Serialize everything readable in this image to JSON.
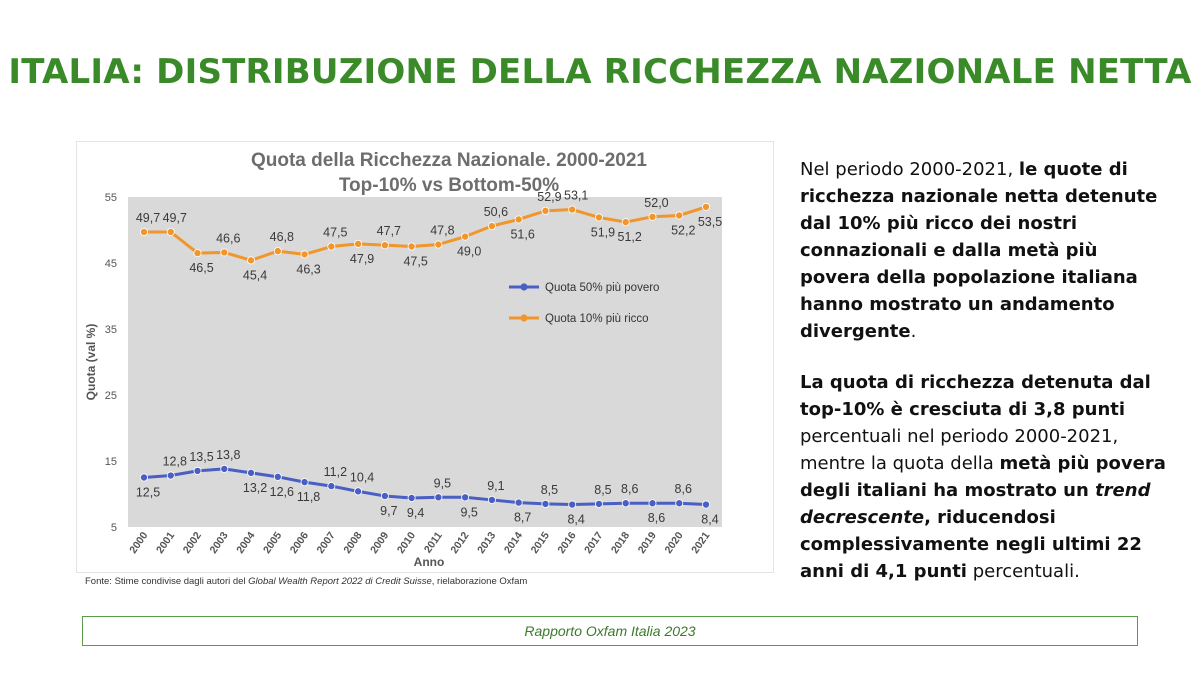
{
  "slide": {
    "title": "ITALIA: DISTRIBUZIONE DELLA RICCHEZZA NAZIONALE NETTA",
    "source_prefix": "Fonte: Stime condivise dagli autori del ",
    "source_italic": "Global Wealth Report 2022 di Credit Suisse",
    "source_suffix": ", rielaborazione  Oxfam",
    "footer": "Rapporto Oxfam Italia 2023"
  },
  "text": {
    "p1_a": "Nel periodo 2000-2021, ",
    "p1_b": "le quote di ricchezza nazionale netta detenute dal 10% più ricco dei nostri connazionali e dalla metà più povera della popolazione italiana hanno mostrato un andamento divergente",
    "p1_c": ".",
    "p2_a": "La quota di ricchezza detenuta dal top-10% è cresciuta di 3,8 punti",
    "p2_b": " percentuali nel periodo 2000-2021, mentre la quota della ",
    "p2_c": "metà più povera degli italiani ha mostrato un ",
    "p2_d": "trend decrescente",
    "p2_e": ", riducendosi complessivamente negli ultimi 22 anni di 4,1 punti",
    "p2_f": " percentuali."
  },
  "chart_data": {
    "type": "line",
    "title": "Quota della Ricchezza Nazionale. 2000-2021",
    "subtitle": "Top-10% vs Bottom-50%",
    "xlabel": "Anno",
    "ylabel": "Quota (val %)",
    "ylim": [
      5,
      55
    ],
    "yticks": [
      5,
      15,
      25,
      35,
      45,
      55
    ],
    "grid": false,
    "legend_position": "right",
    "x": [
      "2000",
      "2001",
      "2002",
      "2003",
      "2004",
      "2005",
      "2006",
      "2007",
      "2008",
      "2009",
      "2010",
      "2011",
      "2012",
      "2013",
      "2014",
      "2015",
      "2016",
      "2017",
      "2018",
      "2019",
      "2020",
      "2021"
    ],
    "series": [
      {
        "name": "Quota 50% più povero",
        "color": "#4a5fc4",
        "values": [
          12.5,
          12.8,
          13.5,
          13.8,
          13.2,
          12.6,
          11.8,
          11.2,
          10.4,
          9.7,
          9.4,
          9.5,
          9.5,
          9.1,
          8.7,
          8.5,
          8.4,
          8.5,
          8.6,
          8.6,
          8.6,
          8.4
        ],
        "labels": [
          "12,5",
          "12,8",
          "13,5",
          "13,8",
          "13,2",
          "12,6",
          "11,8",
          "11,2",
          "10,4",
          "9,7",
          "9,4",
          "9,5",
          "9,5",
          "9,1",
          "8,7",
          "8,5",
          "8,4",
          "8,5",
          "8,6",
          "8,6",
          "8,6",
          "8,4"
        ]
      },
      {
        "name": "Quota 10% più ricco",
        "color": "#f0962c",
        "values": [
          49.7,
          49.7,
          46.5,
          46.6,
          45.4,
          46.8,
          46.3,
          47.5,
          47.9,
          47.7,
          47.5,
          47.8,
          49.0,
          50.6,
          51.6,
          52.9,
          53.1,
          51.9,
          51.2,
          52.0,
          52.2,
          53.5
        ],
        "labels": [
          "49,7",
          "49,7",
          "46,5",
          "46,6",
          "45,4",
          "46,8",
          "46,3",
          "47,5",
          "47,9",
          "47,7",
          "47,5",
          "47,8",
          "49,0",
          "50,6",
          "51,6",
          "52,9",
          "53,1",
          "51,9",
          "51,2",
          "52,0",
          "52,2",
          "53,5"
        ]
      }
    ]
  }
}
